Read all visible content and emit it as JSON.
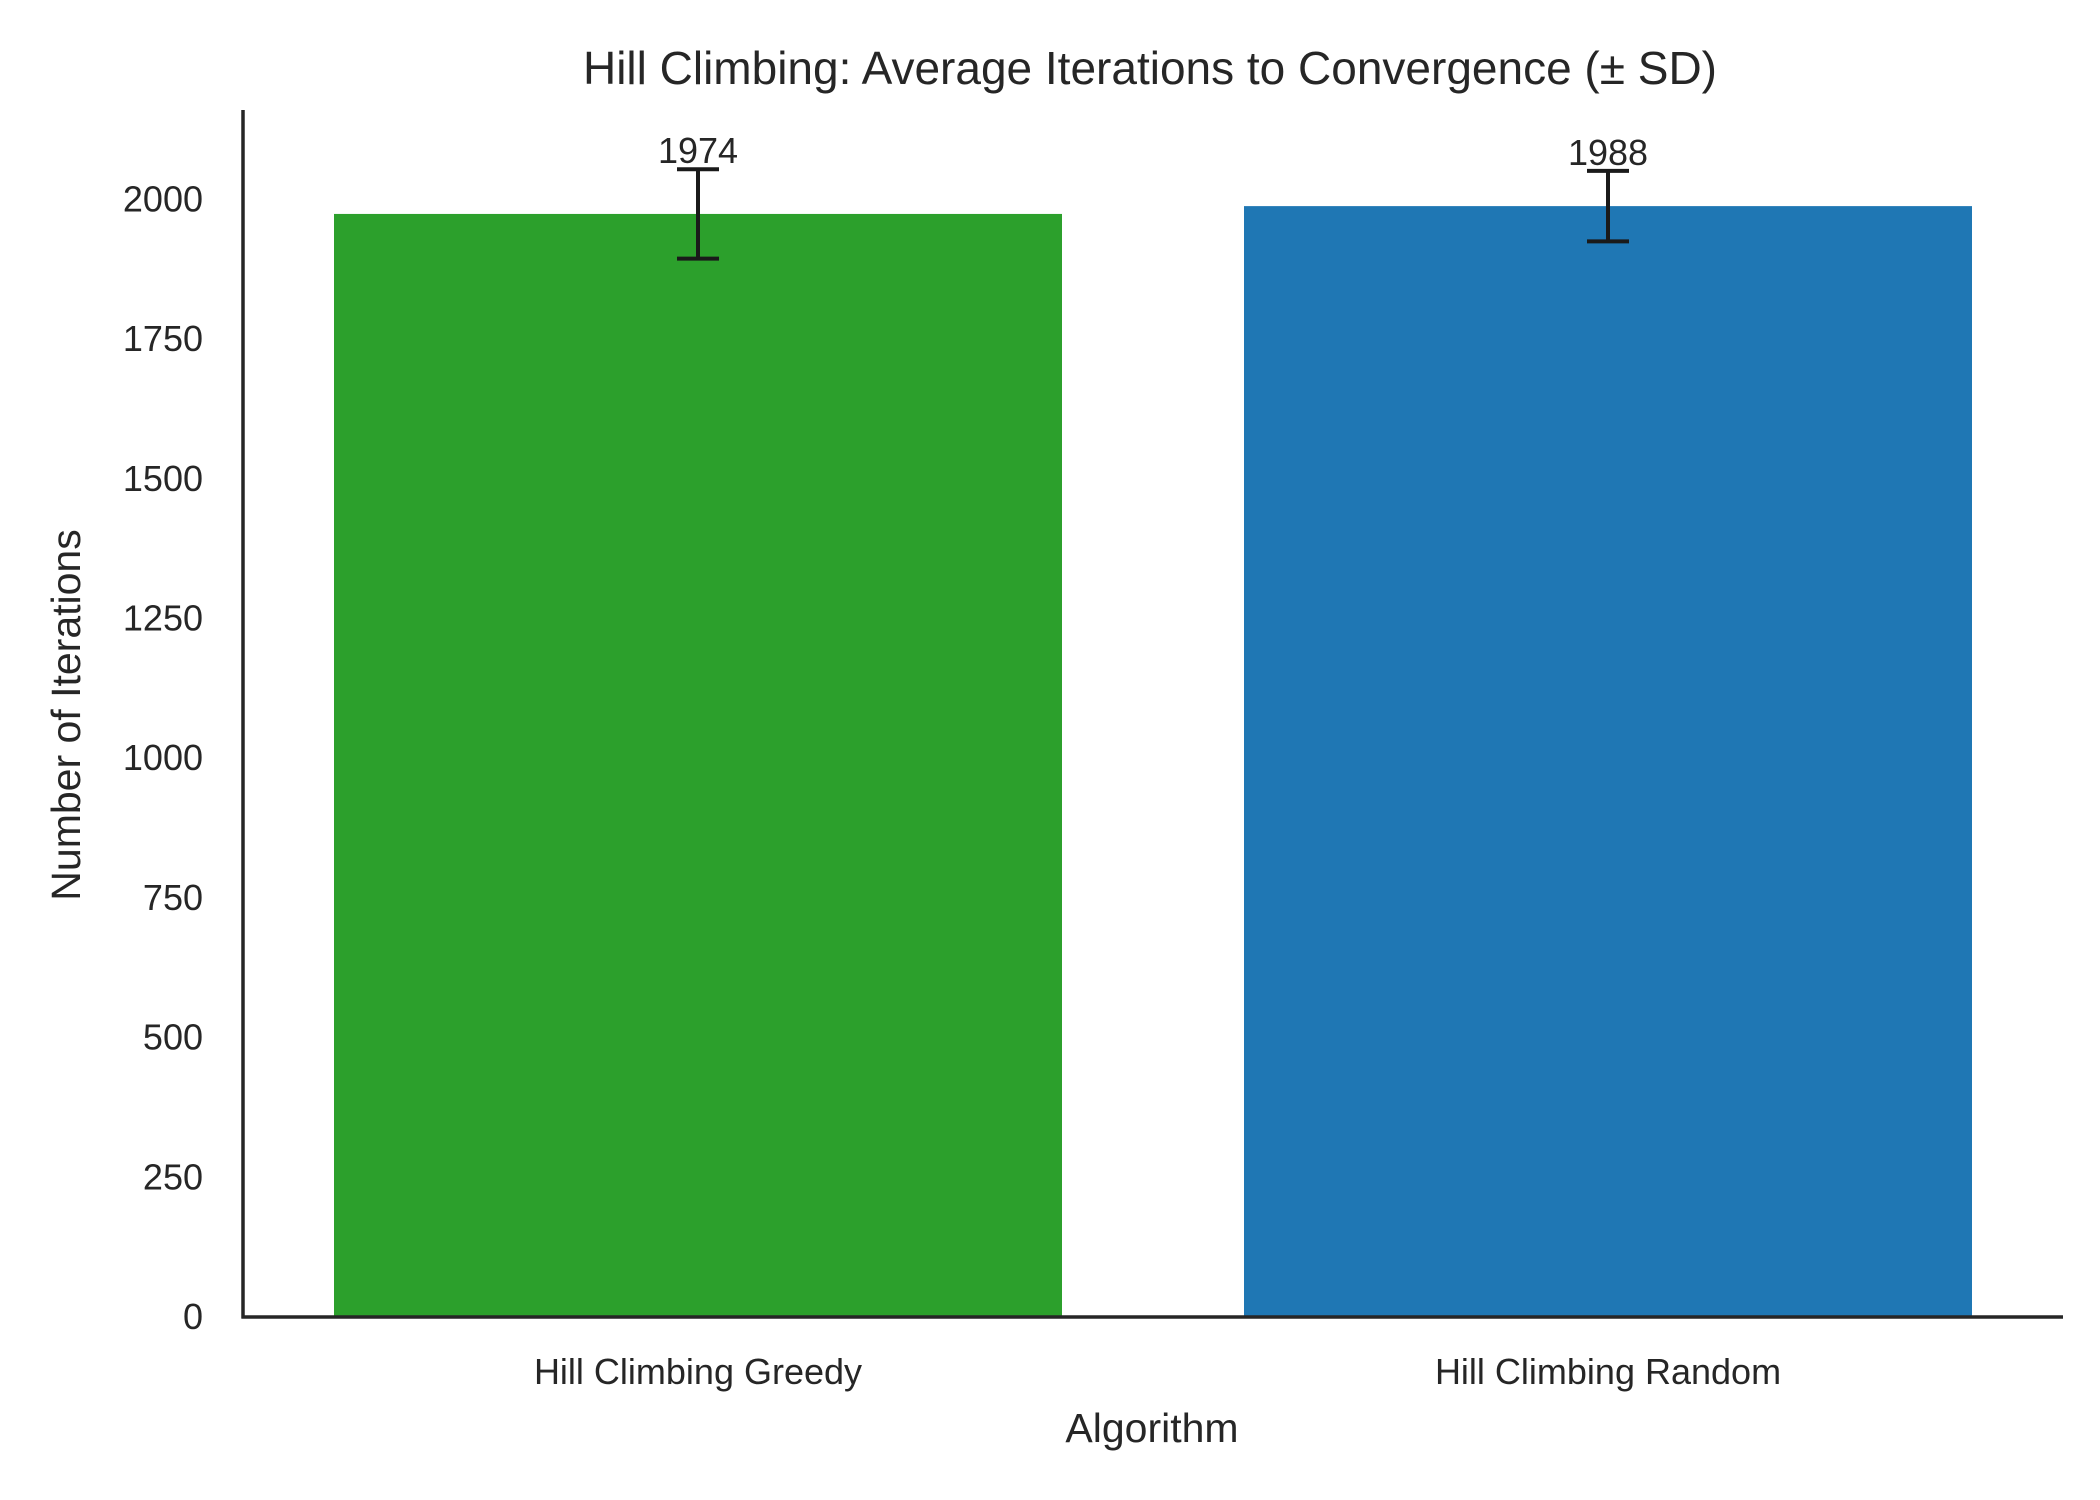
{
  "chart_data": {
    "type": "bar",
    "title": "Hill Climbing: Average Iterations to Convergence (± SD)",
    "xlabel": "Algorithm",
    "ylabel": "Number of Iterations",
    "categories": [
      "Hill Climbing Greedy",
      "Hill Climbing Random"
    ],
    "values": [
      1974,
      1988
    ],
    "errors": [
      80,
      63
    ],
    "data_labels": [
      "1974",
      "1988"
    ],
    "colors": [
      "#2ca02c",
      "#1f77b4"
    ],
    "error_bar_color": "#1a1a1a",
    "ylim": [
      0,
      2160
    ],
    "yticks": [
      0,
      250,
      500,
      750,
      1000,
      1250,
      1500,
      1750,
      2000
    ],
    "grid": false,
    "legend": "none"
  }
}
